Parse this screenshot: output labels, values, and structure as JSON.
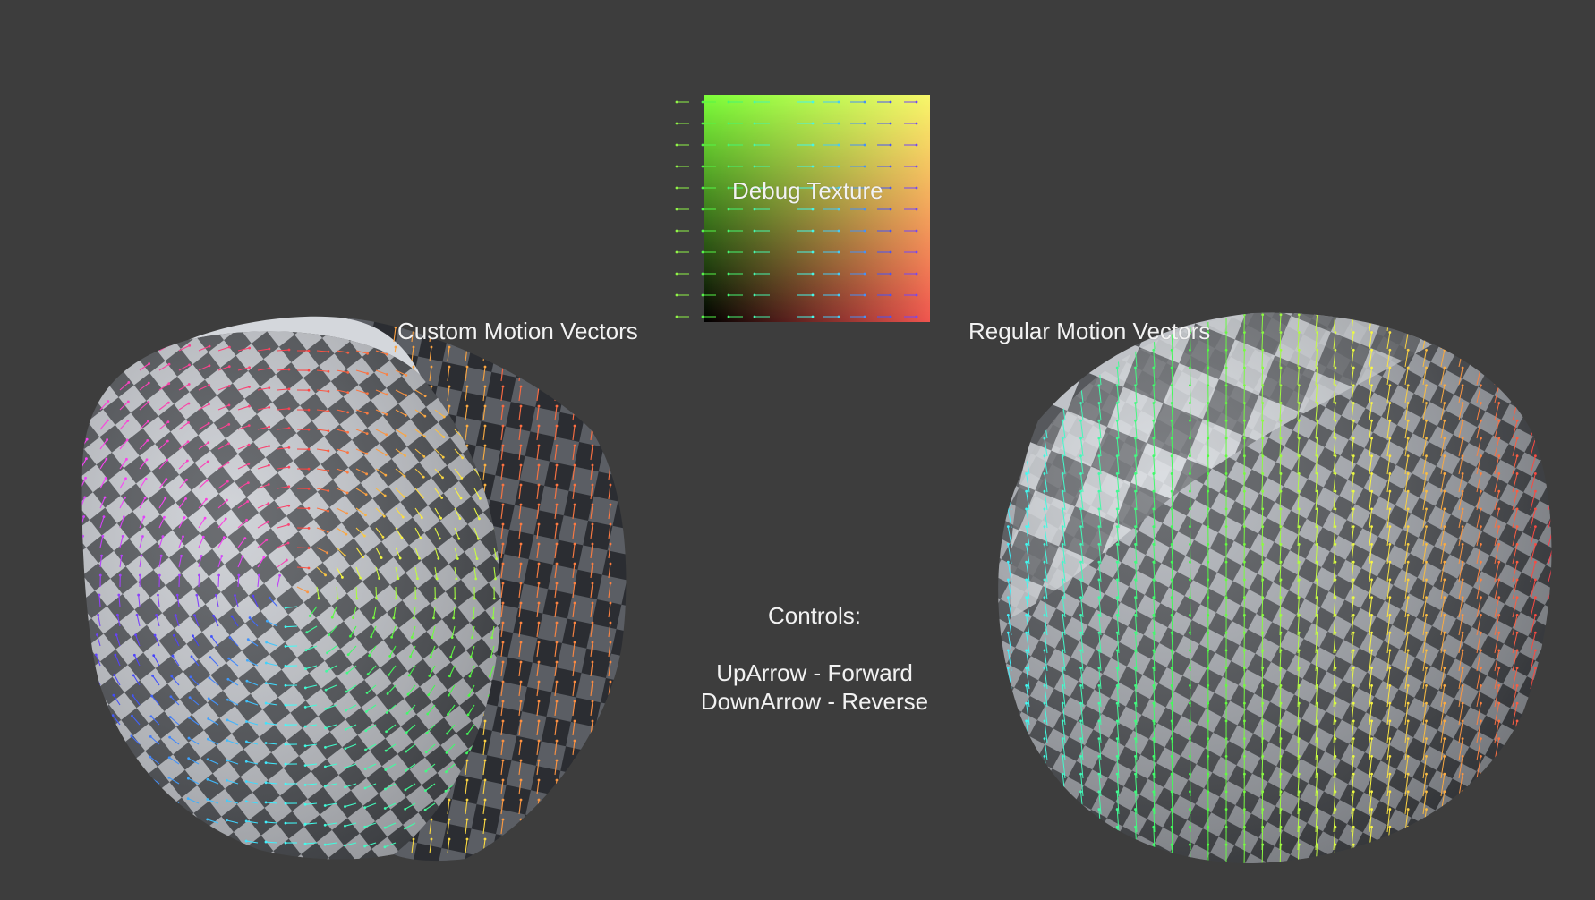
{
  "labels": {
    "debug_texture": "Debug Texture",
    "custom_motion_vectors": "Custom Motion Vectors",
    "regular_motion_vectors": "Regular Motion Vectors"
  },
  "controls": {
    "heading": "Controls:",
    "forward": "UpArrow - Forward",
    "reverse": "DownArrow - Reverse"
  },
  "colors": {
    "background": "#3d3d3d",
    "label_text": "#f2f2f2",
    "checker_light": "#c9ccd2",
    "checker_dark": "#4a4d52",
    "texture_top_left": "#7dff3a",
    "texture_top_right": "#f8f76a",
    "texture_bottom_left": "#000000",
    "texture_bottom_right": "#f0554f"
  }
}
